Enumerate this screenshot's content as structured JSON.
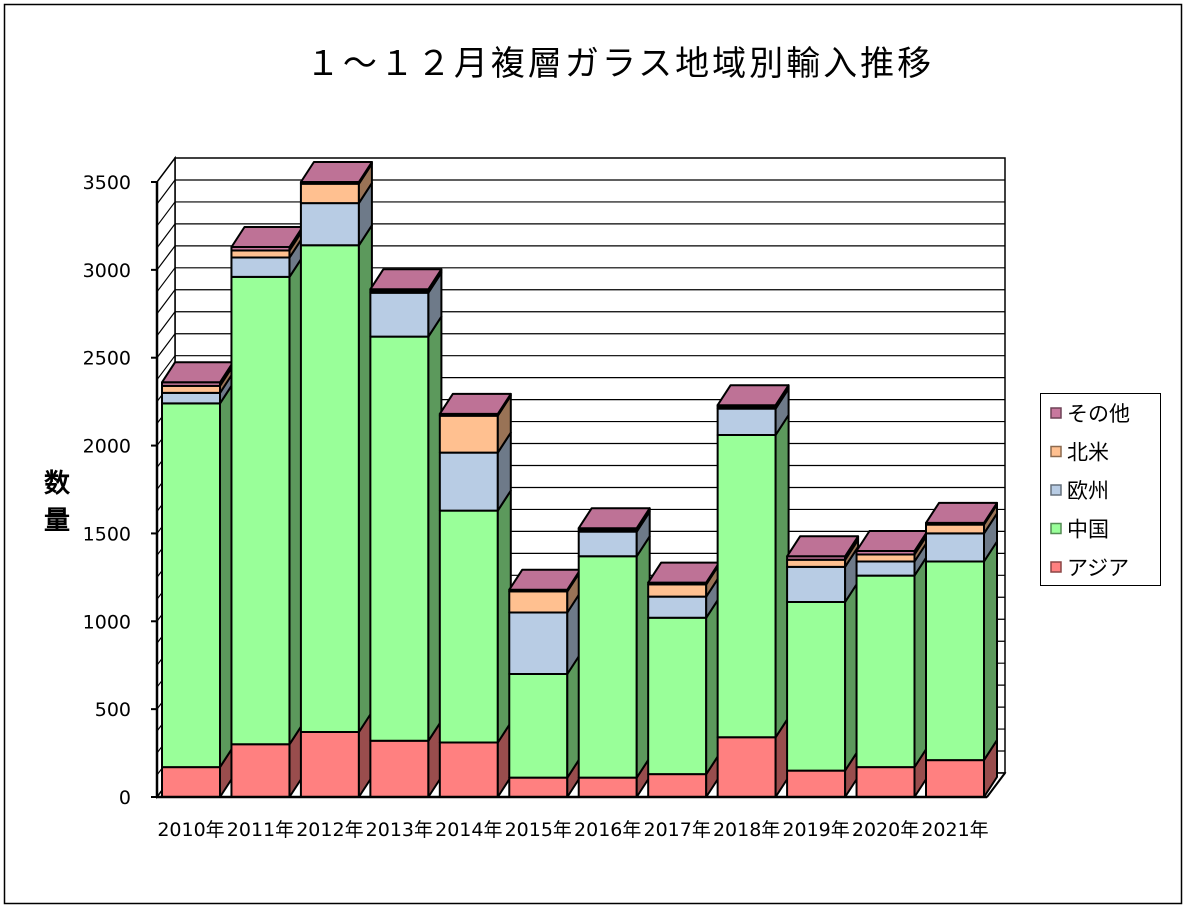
{
  "chart_data": {
    "type": "bar",
    "stacked": true,
    "projection": "3d",
    "title": "１～１２月複層ガラス地域別輸入推移",
    "xlabel": "",
    "ylabel": "数量",
    "categories": [
      "2010年",
      "2011年",
      "2012年",
      "2013年",
      "2014年",
      "2015年",
      "2016年",
      "2017年",
      "2018年",
      "2019年",
      "2020年",
      "2021年"
    ],
    "ylim": [
      0,
      3500
    ],
    "yticks": [
      0,
      500,
      1000,
      1500,
      2000,
      2500,
      3000,
      3500
    ],
    "grid": true,
    "legend_position": "right",
    "series": [
      {
        "name": "アジア",
        "color": "#ff8080",
        "values": [
          170,
          300,
          370,
          320,
          310,
          110,
          110,
          130,
          340,
          150,
          170,
          210
        ]
      },
      {
        "name": "中国",
        "color": "#99ff99",
        "values": [
          2070,
          2660,
          2770,
          2300,
          1320,
          590,
          1260,
          890,
          1720,
          960,
          1090,
          1130
        ]
      },
      {
        "name": "欧州",
        "color": "#b8cce4",
        "values": [
          60,
          110,
          240,
          250,
          330,
          350,
          140,
          120,
          150,
          200,
          80,
          160
        ]
      },
      {
        "name": "北米",
        "color": "#ffc090",
        "values": [
          40,
          40,
          110,
          10,
          210,
          120,
          10,
          70,
          10,
          40,
          40,
          50
        ]
      },
      {
        "name": "その他",
        "color": "#c8789e",
        "values": [
          20,
          20,
          10,
          10,
          10,
          10,
          10,
          10,
          10,
          20,
          20,
          10
        ]
      }
    ]
  }
}
